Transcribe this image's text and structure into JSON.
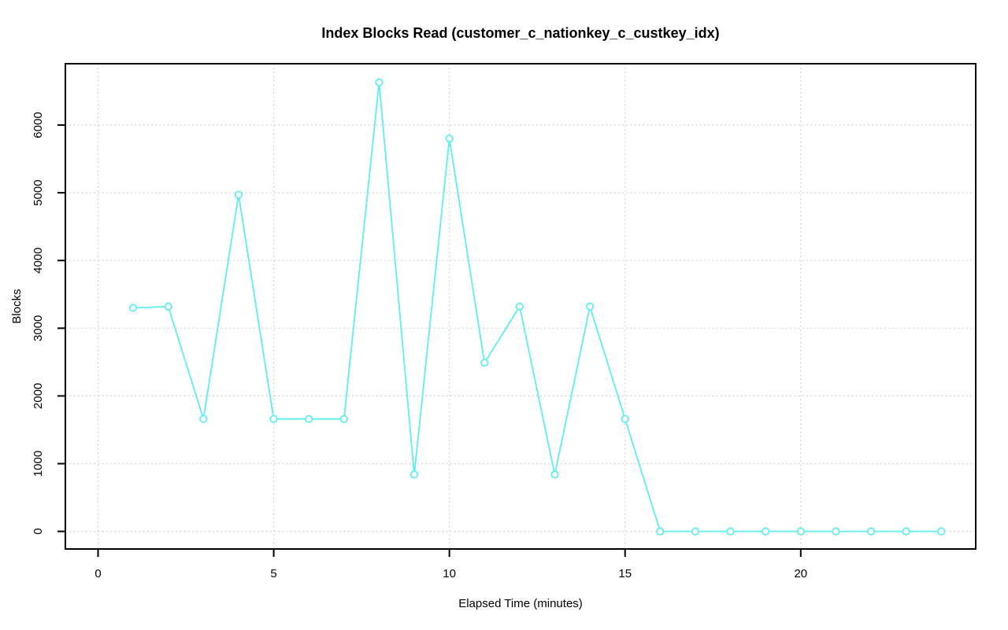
{
  "page": {
    "background": "#ffffff"
  },
  "chart_data": {
    "type": "line",
    "title": "Index Blocks Read (customer_c_nationkey_c_custkey_idx)",
    "xlabel": "Elapsed Time (minutes)",
    "ylabel": "Blocks",
    "x": [
      1,
      2,
      3,
      4,
      5,
      6,
      7,
      8,
      9,
      10,
      11,
      12,
      13,
      14,
      15,
      16,
      17,
      18,
      19,
      20,
      21,
      22,
      23,
      24
    ],
    "y": [
      3300,
      3320,
      1660,
      4970,
      1660,
      1660,
      1660,
      6630,
      840,
      5800,
      2490,
      3320,
      840,
      3320,
      1660,
      0,
      0,
      0,
      0,
      0,
      0,
      0,
      0,
      0
    ],
    "x_ticks": [
      0,
      5,
      10,
      15,
      20
    ],
    "y_ticks": [
      0,
      1000,
      2000,
      3000,
      4000,
      5000,
      6000
    ],
    "xlim": [
      -0.93,
      24.98
    ],
    "ylim": [
      -260,
      6906
    ],
    "grid": true,
    "grid_style": "dotted",
    "line_style": "solid",
    "marker": "open-circle",
    "legend": "none",
    "colors": {
      "line": "#5fedef",
      "marker_stroke": "#5fedef",
      "marker_fill": "#ffffff",
      "grid": "#c9c9c9",
      "axis": "#000000",
      "text": "#000000"
    }
  }
}
